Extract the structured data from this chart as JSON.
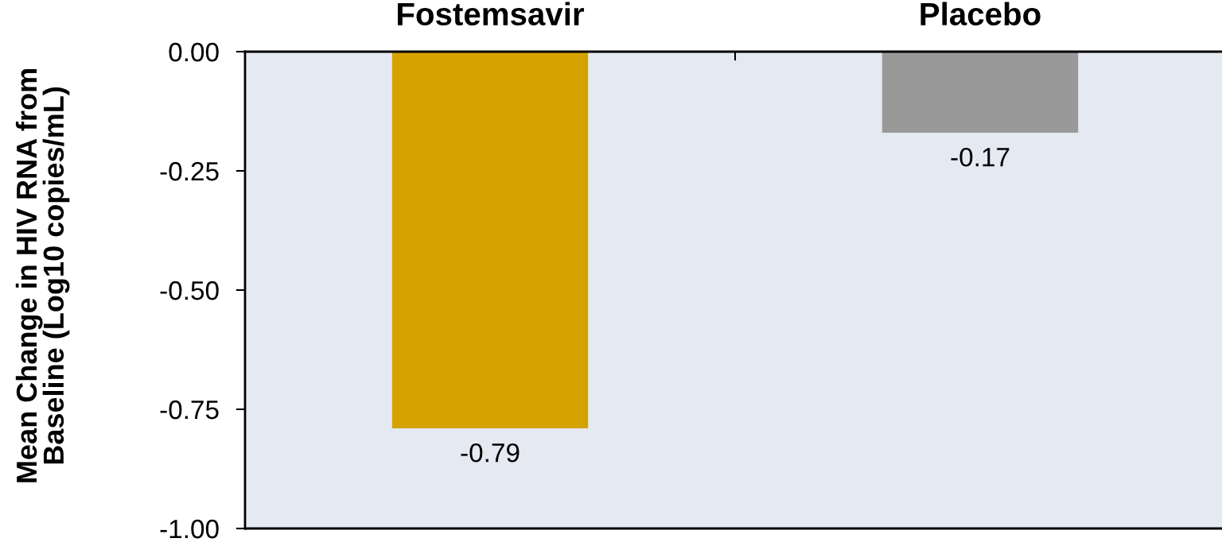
{
  "chart_data": {
    "type": "bar",
    "categories": [
      "Fostemsavir",
      "Placebo"
    ],
    "values": [
      -0.79,
      -0.17
    ],
    "colors": [
      "#d4a300",
      "#999999"
    ],
    "ylabel": "Mean Change in HIV RNA from\nBaseline (Log10 copies/mL)",
    "ylim": [
      -1.0,
      0
    ],
    "yticks": [
      {
        "value": 0,
        "label": "0.00"
      },
      {
        "value": -0.25,
        "label": "-0.25"
      },
      {
        "value": -0.5,
        "label": "-0.50"
      },
      {
        "value": -0.75,
        "label": "-0.75"
      },
      {
        "value": -1.0,
        "label": "-1.00"
      }
    ],
    "data_labels": true
  }
}
